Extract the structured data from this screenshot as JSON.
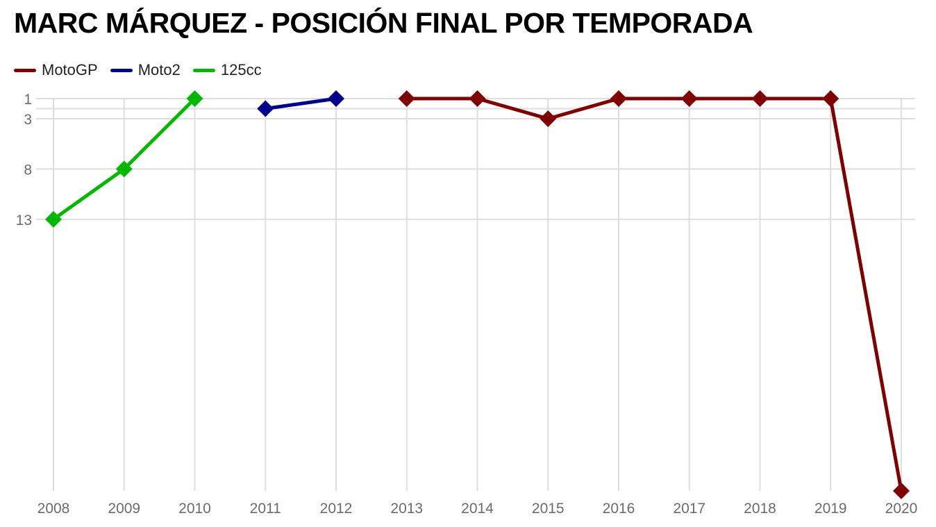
{
  "chart_data": {
    "type": "line",
    "title": "MARC MÁRQUEZ - POSICIÓN FINAL POR TEMPORADA",
    "xlabel": "",
    "ylabel": "",
    "x": [
      "2008",
      "2009",
      "2010",
      "2011",
      "2012",
      "2013",
      "2014",
      "2015",
      "2016",
      "2017",
      "2018",
      "2019",
      "2020"
    ],
    "y_ticks": [
      1,
      3,
      8,
      13
    ],
    "ylim": [
      1,
      40
    ],
    "y_inverted": true,
    "grid": true,
    "legend_position": "top-left",
    "series": [
      {
        "name": "MotoGP",
        "color": "#800000",
        "x": [
          "2013",
          "2014",
          "2015",
          "2016",
          "2017",
          "2018",
          "2019",
          "2020"
        ],
        "values": [
          1,
          1,
          3,
          1,
          1,
          1,
          1,
          40
        ]
      },
      {
        "name": "Moto2",
        "color": "#00008B",
        "x": [
          "2011",
          "2012"
        ],
        "values": [
          2,
          1
        ]
      },
      {
        "name": "125cc",
        "color": "#00B800",
        "x": [
          "2008",
          "2009",
          "2010"
        ],
        "values": [
          13,
          8,
          1
        ]
      }
    ]
  }
}
